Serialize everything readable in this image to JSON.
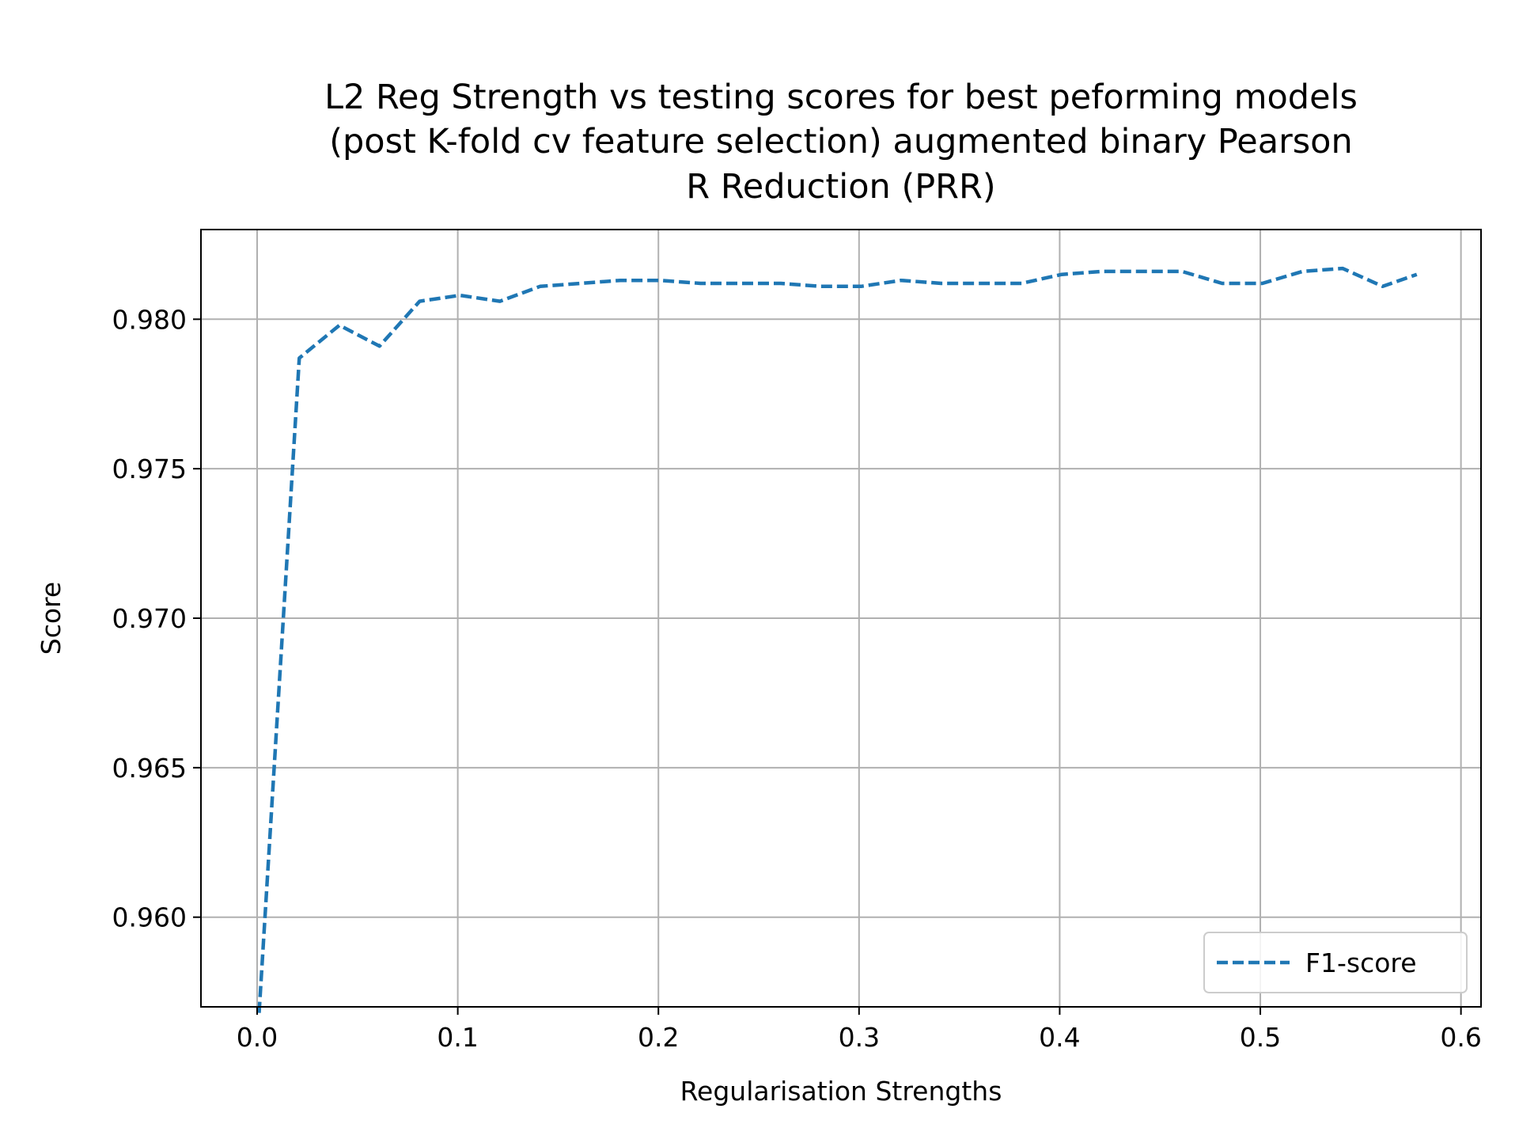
{
  "chart_data": {
    "type": "line",
    "title_lines": [
      "L2 Reg Strength vs testing scores for best peforming models",
      "(post K-fold cv feature selection) augmented binary Pearson",
      "R Reduction (PRR)"
    ],
    "xlabel": "Regularisation Strengths",
    "ylabel": "Score",
    "xlim": [
      -0.028,
      0.61
    ],
    "ylim": [
      0.957,
      0.983
    ],
    "x_ticks": [
      0.0,
      0.1,
      0.2,
      0.3,
      0.4,
      0.5,
      0.6
    ],
    "x_tick_labels": [
      "0.0",
      "0.1",
      "0.2",
      "0.3",
      "0.4",
      "0.5",
      "0.6"
    ],
    "y_ticks": [
      0.96,
      0.965,
      0.97,
      0.975,
      0.98
    ],
    "y_tick_labels": [
      "0.960",
      "0.965",
      "0.970",
      "0.975",
      "0.980"
    ],
    "grid": true,
    "legend_position": "lower-right",
    "series": [
      {
        "name": "F1-score",
        "color": "#1f77b4",
        "line_style": "dashed",
        "x": [
          0.001,
          0.021,
          0.041,
          0.061,
          0.081,
          0.101,
          0.121,
          0.141,
          0.161,
          0.181,
          0.201,
          0.221,
          0.241,
          0.261,
          0.281,
          0.301,
          0.321,
          0.341,
          0.361,
          0.381,
          0.401,
          0.421,
          0.441,
          0.461,
          0.481,
          0.501,
          0.521,
          0.541,
          0.561,
          0.578
        ],
        "y": [
          0.9568,
          0.9787,
          0.9798,
          0.9791,
          0.9806,
          0.9808,
          0.9806,
          0.9811,
          0.9812,
          0.9813,
          0.9813,
          0.9812,
          0.9812,
          0.9812,
          0.9811,
          0.9811,
          0.9813,
          0.9812,
          0.9812,
          0.9812,
          0.9815,
          0.9816,
          0.9816,
          0.9816,
          0.9812,
          0.9812,
          0.9816,
          0.9817,
          0.9811,
          0.9815
        ]
      }
    ]
  }
}
